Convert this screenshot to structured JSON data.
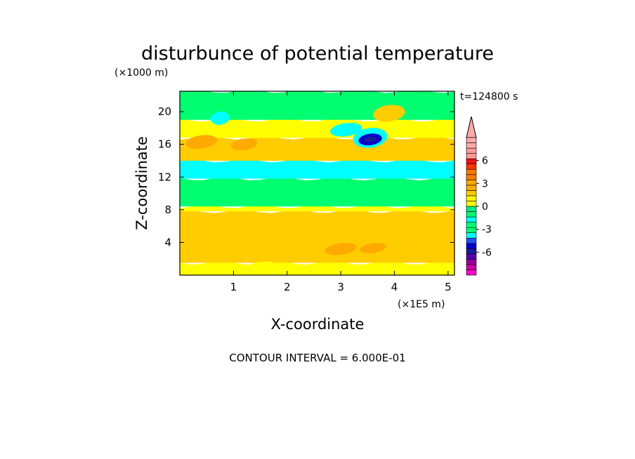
{
  "chart_data": {
    "type": "heatmap",
    "title": "disturbunce of potential temperature",
    "y_unit": "(×1000 m)",
    "x_unit": "(×1E5 m)",
    "xlabel": "X-coordinate",
    "ylabel": "Z-coordinate",
    "time_label": "t=124800 s",
    "footer": "CONTOUR INTERVAL = 6.000E-01",
    "x_ticks": [
      "1",
      "2",
      "3",
      "4",
      "5"
    ],
    "y_ticks": [
      "4",
      "8",
      "12",
      "16",
      "20"
    ],
    "xlim": [
      0,
      5.12
    ],
    "ylim": [
      0,
      22.5
    ],
    "colorbar": {
      "ticks": [
        "6",
        "3",
        "0",
        "-3",
        "-6"
      ],
      "tick_values": [
        6,
        3,
        0,
        -3,
        -6
      ],
      "range": [
        -9,
        9
      ],
      "levels": [
        -9,
        -7.2,
        -6.6,
        -6.0,
        -5.4,
        -4.8,
        -4.2,
        -3.6,
        -3.0,
        -2.4,
        -1.8,
        -1.2,
        -0.6,
        0,
        0.6,
        1.2,
        1.8,
        2.4,
        3.0,
        3.6,
        4.2,
        4.8,
        5.4,
        6.0,
        6.6,
        7.2,
        9
      ],
      "colors": [
        "#ff00cc",
        "#cc00aa",
        "#990099",
        "#5500aa",
        "#1a1aa0",
        "#0000cc",
        "#2050ff",
        "#00ffff",
        "#00ff70",
        "#00ff70",
        "#00ffff",
        "#00ff70",
        "#00ee88",
        "#ffff00",
        "#ffff00",
        "#ffcc00",
        "#ffaa00",
        "#ffaa00",
        "#ff7700",
        "#ff7700",
        "#ff3300",
        "#ee1111",
        "#ff9999",
        "#ff9999",
        "#ffaaaa",
        "#ffaaaa"
      ]
    },
    "field_bands": [
      {
        "z_min": 0.0,
        "z_max": 1.5,
        "value": 0.2,
        "color": "#ffff00"
      },
      {
        "z_min": 1.5,
        "z_max": 7.8,
        "value": 1.2,
        "color": "#ffcc00"
      },
      {
        "z_min": 7.8,
        "z_max": 8.4,
        "value": 0.2,
        "color": "#ffff00"
      },
      {
        "z_min": 8.4,
        "z_max": 11.8,
        "value": -0.6,
        "color": "#00ff70"
      },
      {
        "z_min": 11.8,
        "z_max": 14.0,
        "value": -1.4,
        "color": "#00ffff"
      },
      {
        "z_min": 14.0,
        "z_max": 16.8,
        "value": 1.0,
        "color": "#ffcc00"
      },
      {
        "z_min": 16.8,
        "z_max": 19.0,
        "value": 0.2,
        "color": "#ffff00"
      },
      {
        "z_min": 19.0,
        "z_max": 22.5,
        "value": -0.5,
        "color": "#00ff70"
      }
    ],
    "features": [
      {
        "x": 3.55,
        "z": 16.8,
        "rx": 0.32,
        "rz": 1.2,
        "value": -2.6,
        "color": "#00ffff"
      },
      {
        "x": 3.55,
        "z": 16.6,
        "rx": 0.22,
        "rz": 0.7,
        "value": -4.6,
        "color": "#0000cc"
      },
      {
        "x": 3.55,
        "z": 16.6,
        "rx": 0.12,
        "rz": 0.35,
        "value": -5.8,
        "color": "#1a1aa0"
      },
      {
        "x": 2.93,
        "z": 17.5,
        "rx": 0.07,
        "rz": 0.45,
        "value": -4.2,
        "color": "#0000cc"
      },
      {
        "x": 3.1,
        "z": 17.8,
        "rx": 0.3,
        "rz": 0.8,
        "value": -1.5,
        "color": "#00ffff"
      },
      {
        "x": 0.75,
        "z": 19.0,
        "rx": 0.03,
        "rz": 0.25,
        "value": -4.2,
        "color": "#0000cc"
      },
      {
        "x": 0.75,
        "z": 19.2,
        "rx": 0.18,
        "rz": 0.8,
        "value": -1.5,
        "color": "#00ffff"
      },
      {
        "x": 3.0,
        "z": 3.2,
        "rx": 0.3,
        "rz": 0.7,
        "value": 2.0,
        "color": "#ffaa00"
      },
      {
        "x": 3.6,
        "z": 3.3,
        "rx": 0.25,
        "rz": 0.6,
        "value": 2.0,
        "color": "#ffaa00"
      },
      {
        "x": 0.4,
        "z": 16.3,
        "rx": 0.3,
        "rz": 0.8,
        "value": 2.0,
        "color": "#ffaa00"
      },
      {
        "x": 1.2,
        "z": 16.0,
        "rx": 0.25,
        "rz": 0.7,
        "value": 2.0,
        "color": "#ffaa00"
      },
      {
        "x": 3.9,
        "z": 19.8,
        "rx": 0.3,
        "rz": 1.0,
        "value": 1.0,
        "color": "#ffcc00"
      },
      {
        "x": 1.5,
        "z": 1.0,
        "rx": 0.3,
        "rz": 0.6,
        "value": 0.3,
        "color": "#ffff00"
      }
    ]
  }
}
